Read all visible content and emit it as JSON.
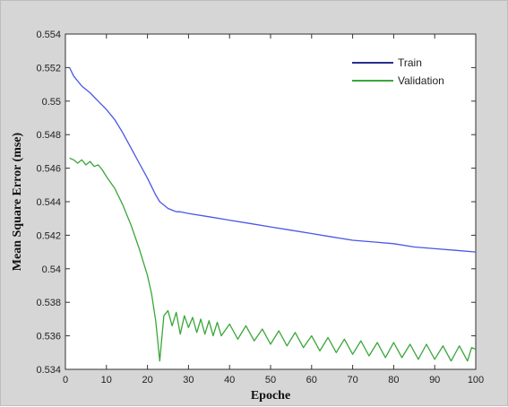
{
  "chart_data": {
    "type": "line",
    "title": "",
    "xlabel": "Epoche",
    "ylabel": "Mean Square Error (mse)",
    "xlim": [
      0,
      100
    ],
    "ylim": [
      0.534,
      0.554
    ],
    "xticks": [
      0,
      10,
      20,
      30,
      40,
      50,
      60,
      70,
      80,
      90,
      100
    ],
    "xtick_labels": [
      "0",
      "10",
      "20",
      "30",
      "40",
      "50",
      "60",
      "70",
      "80",
      "90",
      "100"
    ],
    "yticks": [
      0.534,
      0.536,
      0.538,
      0.54,
      0.542,
      0.544,
      0.546,
      0.548,
      0.55,
      0.552,
      0.554
    ],
    "ytick_labels": [
      "0.534",
      "0.536",
      "0.538",
      "0.54",
      "0.542",
      "0.544",
      "0.546",
      "0.548",
      "0.55",
      "0.552",
      "0.554"
    ],
    "grid": false,
    "legend_position": "top-right",
    "series": [
      {
        "name": "Train",
        "color": "#4a56e6",
        "x": [
          1,
          2,
          4,
          6,
          8,
          10,
          12,
          14,
          16,
          18,
          20,
          21,
          22,
          23,
          24,
          25,
          26,
          27,
          28,
          30,
          35,
          40,
          45,
          50,
          55,
          60,
          65,
          70,
          75,
          80,
          85,
          90,
          95,
          100
        ],
        "y": [
          0.552,
          0.5515,
          0.5509,
          0.5505,
          0.55,
          0.5495,
          0.5489,
          0.5481,
          0.5472,
          0.5463,
          0.5454,
          0.5449,
          0.5444,
          0.544,
          0.5438,
          0.5436,
          0.5435,
          0.5434,
          0.5434,
          0.5433,
          0.5431,
          0.5429,
          0.5427,
          0.5425,
          0.5423,
          0.5421,
          0.5419,
          0.5417,
          0.5416,
          0.5415,
          0.5413,
          0.5412,
          0.5411,
          0.541
        ]
      },
      {
        "name": "Validation",
        "color": "#3aa63a",
        "x": [
          1,
          2,
          3,
          4,
          5,
          6,
          7,
          8,
          9,
          10,
          12,
          14,
          16,
          18,
          20,
          21,
          22,
          23,
          24,
          25,
          26,
          27,
          28,
          29,
          30,
          31,
          32,
          33,
          34,
          35,
          36,
          37,
          38,
          40,
          42,
          44,
          46,
          48,
          50,
          52,
          54,
          56,
          58,
          60,
          62,
          64,
          66,
          68,
          70,
          72,
          74,
          76,
          78,
          80,
          82,
          84,
          86,
          88,
          90,
          92,
          94,
          96,
          98,
          99,
          100
        ],
        "y": [
          0.5466,
          0.5465,
          0.5463,
          0.5465,
          0.5462,
          0.5464,
          0.5461,
          0.5462,
          0.5459,
          0.5455,
          0.5448,
          0.5438,
          0.5426,
          0.5412,
          0.5396,
          0.5385,
          0.5369,
          0.5345,
          0.5372,
          0.5375,
          0.5366,
          0.5374,
          0.5361,
          0.5372,
          0.5365,
          0.5371,
          0.5362,
          0.537,
          0.5361,
          0.5369,
          0.536,
          0.5368,
          0.536,
          0.5367,
          0.5358,
          0.5366,
          0.5357,
          0.5364,
          0.5355,
          0.5363,
          0.5354,
          0.5362,
          0.5353,
          0.536,
          0.5351,
          0.5359,
          0.535,
          0.5358,
          0.5349,
          0.5357,
          0.5348,
          0.5356,
          0.5347,
          0.5356,
          0.5347,
          0.5355,
          0.5346,
          0.5355,
          0.5346,
          0.5354,
          0.5345,
          0.5354,
          0.5345,
          0.5353,
          0.5352
        ]
      }
    ]
  }
}
